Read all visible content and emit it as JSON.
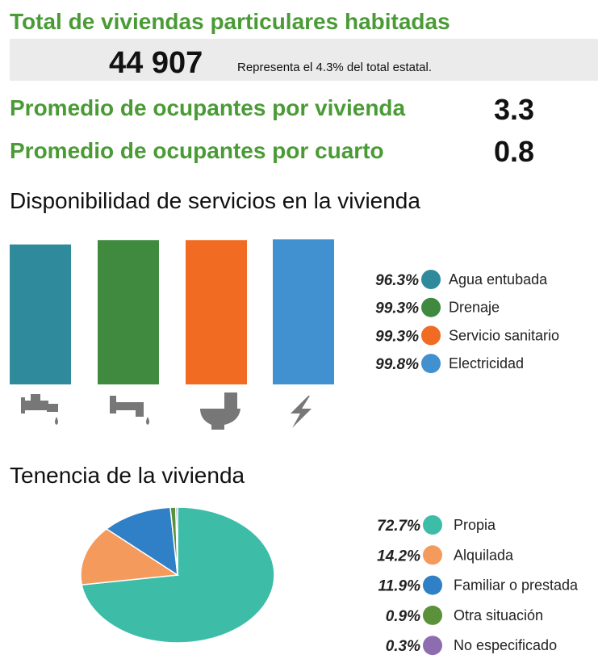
{
  "header": {
    "title": "Total de viviendas particulares habitadas",
    "total": "44 907",
    "note": "Representa el 4.3% del total estatal.",
    "stats": [
      {
        "label": "Promedio de ocupantes por vivienda",
        "value": 3.3
      },
      {
        "label": "Promedio de ocupantes por cuarto",
        "value": 0.8
      }
    ]
  },
  "chart_data": [
    {
      "type": "bar",
      "title": "Disponibilidad de servicios en la vivienda",
      "categories": [
        "Agua entubada",
        "Drenaje",
        "Servicio sanitario",
        "Electricidad"
      ],
      "values": [
        96.3,
        99.3,
        99.3,
        99.8
      ],
      "value_labels": [
        "96.3%",
        "99.3%",
        "99.3%",
        "99.8%"
      ],
      "colors": [
        "#2f8b9b",
        "#3f8a3e",
        "#f26b22",
        "#4190d0"
      ],
      "ylim": [
        0,
        100
      ]
    },
    {
      "type": "pie",
      "title": "Tenencia de la vivienda",
      "categories": [
        "Propia",
        "Alquilada",
        "Familiar o prestada",
        "Otra situación",
        "No especificado"
      ],
      "values": [
        72.7,
        14.2,
        11.9,
        0.9,
        0.3
      ],
      "value_labels": [
        "72.7%",
        "14.2%",
        "11.9%",
        "0.9%",
        "0.3%"
      ],
      "colors": [
        "#3dbda8",
        "#f49a5c",
        "#2f80c6",
        "#5b913b",
        "#8e6cb0"
      ]
    }
  ]
}
